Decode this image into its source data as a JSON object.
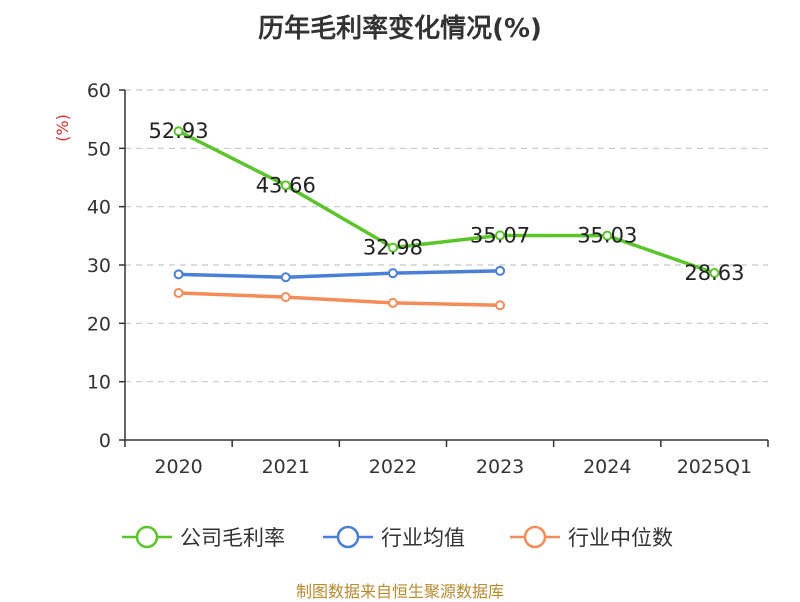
{
  "chart_data": {
    "type": "line",
    "title": "历年毛利率变化情况(%)",
    "ylabel": "(%)",
    "xlabel": "",
    "categories": [
      "2020",
      "2021",
      "2022",
      "2023",
      "2024",
      "2025Q1"
    ],
    "ylim": [
      0,
      60
    ],
    "yticks": [
      0,
      10,
      20,
      30,
      40,
      50,
      60
    ],
    "grid": true,
    "legend_position": "bottom",
    "series": [
      {
        "name": "公司毛利率",
        "color": "#5bc42b",
        "values": [
          52.93,
          43.66,
          32.98,
          35.07,
          35.03,
          28.63
        ],
        "labels": [
          "52.93",
          "43.66",
          "32.98",
          "35.07",
          "35.03",
          "28.63"
        ]
      },
      {
        "name": "行业均值",
        "color": "#4a7fd8",
        "values": [
          28.4,
          27.9,
          28.6,
          29.0,
          null,
          null
        ]
      },
      {
        "name": "行业中位数",
        "color": "#f48c5a",
        "values": [
          25.2,
          24.5,
          23.5,
          23.1,
          null,
          null
        ]
      }
    ]
  },
  "source": "制图数据来自恒生聚源数据库"
}
